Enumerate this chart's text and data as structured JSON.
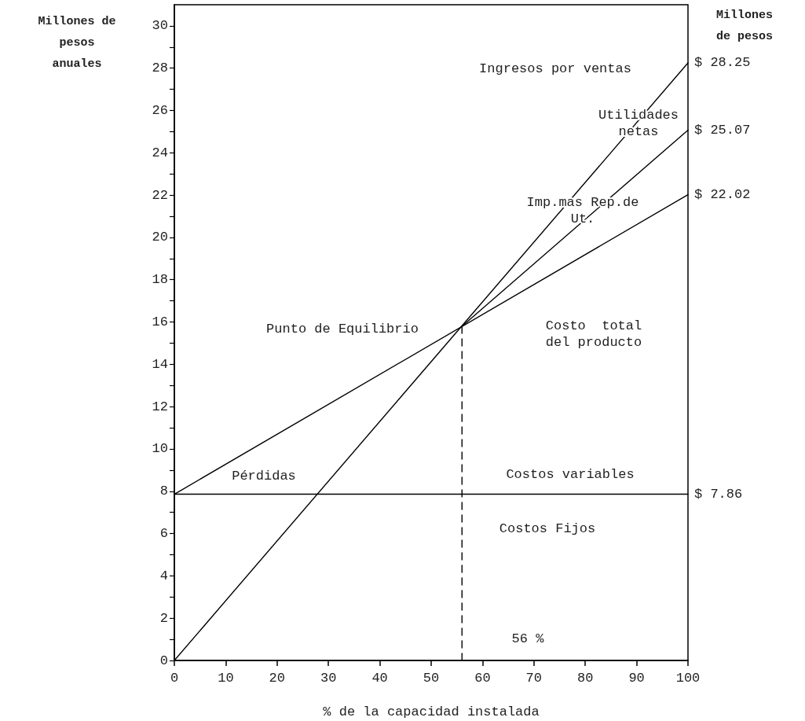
{
  "chart_data": {
    "type": "line",
    "xlabel": "% de la capacidad instalada",
    "ylabel": "Millones de\npesos\nanuales",
    "y2label": "Millones\nde pesos",
    "marker": "none",
    "xlim": [
      0,
      100
    ],
    "ylim": [
      0,
      31
    ],
    "xticks": [
      0,
      10,
      20,
      30,
      40,
      50,
      60,
      70,
      80,
      90,
      100
    ],
    "yticks": [
      0,
      {
        "value": 1,
        "label": null
      },
      2,
      {
        "value": 3,
        "label": null
      },
      4,
      {
        "value": 5,
        "label": null
      },
      6,
      {
        "value": 7,
        "label": null
      },
      8,
      {
        "value": 9,
        "label": null
      },
      10,
      {
        "value": 11,
        "label": null
      },
      12,
      {
        "value": 13,
        "label": null
      },
      14,
      {
        "value": 15,
        "label": null
      },
      16,
      {
        "value": 17,
        "label": null
      },
      18,
      {
        "value": 19,
        "label": null
      },
      20,
      {
        "value": 21,
        "label": null
      },
      22,
      {
        "value": 23,
        "label": null
      },
      24,
      {
        "value": 25,
        "label": null
      },
      26,
      {
        "value": 27,
        "label": null
      },
      28,
      {
        "value": 29,
        "label": null
      },
      30
    ],
    "series": [
      {
        "x": [
          0,
          100
        ],
        "values": [
          0,
          28.25
        ],
        "value_labels": [
          null,
          "$ 28.25"
        ],
        "color": "#000000",
        "line_style": "solid"
      },
      {
        "x": [
          0,
          100
        ],
        "values": [
          7.86,
          22.02
        ],
        "value_labels": [
          null,
          "$ 22.02"
        ],
        "color": "#000000",
        "line_style": "solid"
      },
      {
        "x": [
          56,
          100
        ],
        "values": [
          15.8,
          25.07
        ],
        "value_labels": [
          null,
          "$ 25.07"
        ],
        "color": "#000000",
        "line_style": "solid"
      },
      {
        "x": [
          0,
          100
        ],
        "values": [
          7.86,
          7.86
        ],
        "value_labels": [
          null,
          "$ 7.86"
        ],
        "color": "#000000",
        "line_style": "solid"
      },
      {
        "x": [
          56,
          56
        ],
        "values": [
          0,
          15.8
        ],
        "color": "#000000",
        "line_style": "dashed"
      }
    ],
    "annotations": [
      "Ingresos por ventas",
      "Utilidades\nnetas",
      "Imp.mas Rep.de\nUt.",
      "Punto de Equilibrio",
      "Costo  total\ndel producto",
      "Pérdidas",
      "Costos variables",
      "Costos Fijos",
      "56 %"
    ]
  }
}
